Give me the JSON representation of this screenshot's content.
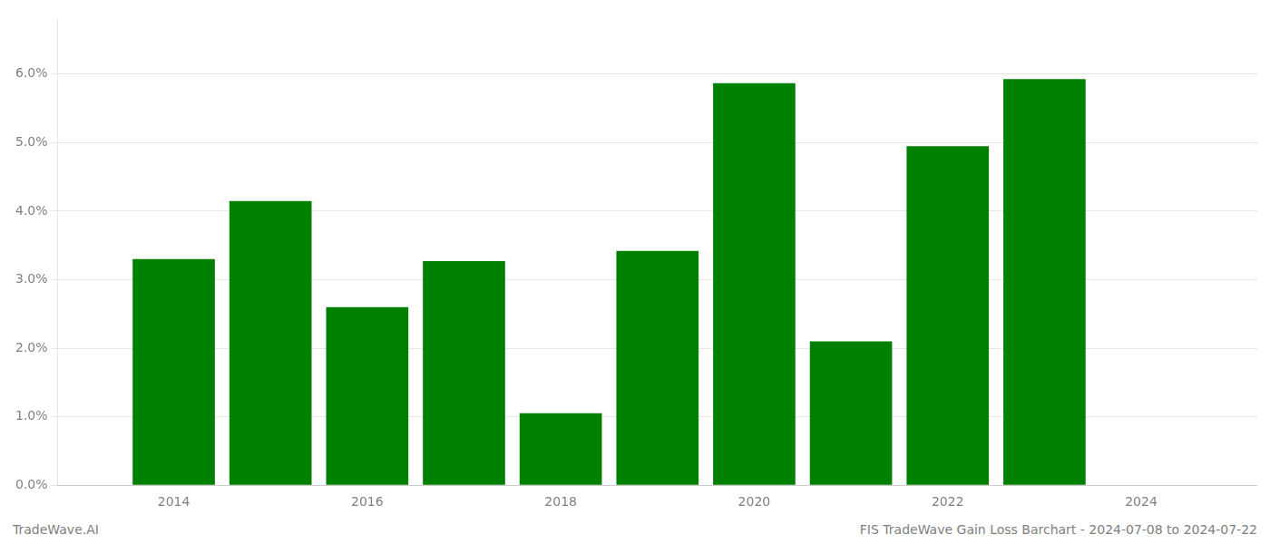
{
  "chart_data": {
    "type": "bar",
    "x": [
      2014,
      2015,
      2016,
      2017,
      2018,
      2019,
      2020,
      2021,
      2022,
      2023
    ],
    "values": [
      0.033,
      0.0415,
      0.026,
      0.0327,
      0.0105,
      0.0342,
      0.0587,
      0.021,
      0.0495,
      0.0593
    ],
    "color": "#008000",
    "xlim": [
      2012.8,
      2025.2
    ],
    "xticks": [
      2014,
      2016,
      2018,
      2020,
      2022,
      2024
    ],
    "ylim": [
      0.0,
      0.068
    ],
    "yticks": [
      {
        "value": 0.0,
        "label": "0.0%"
      },
      {
        "value": 0.01,
        "label": "1.0%"
      },
      {
        "value": 0.02,
        "label": "2.0%"
      },
      {
        "value": 0.03,
        "label": "3.0%"
      },
      {
        "value": 0.04,
        "label": "4.0%"
      },
      {
        "value": 0.05,
        "label": "5.0%"
      },
      {
        "value": 0.06,
        "label": "6.0%"
      }
    ],
    "grid": "y",
    "annotations": [
      "TradeWave.AI",
      "FIS TradeWave Gain Loss Barchart - 2024-07-08 to 2024-07-22"
    ]
  }
}
